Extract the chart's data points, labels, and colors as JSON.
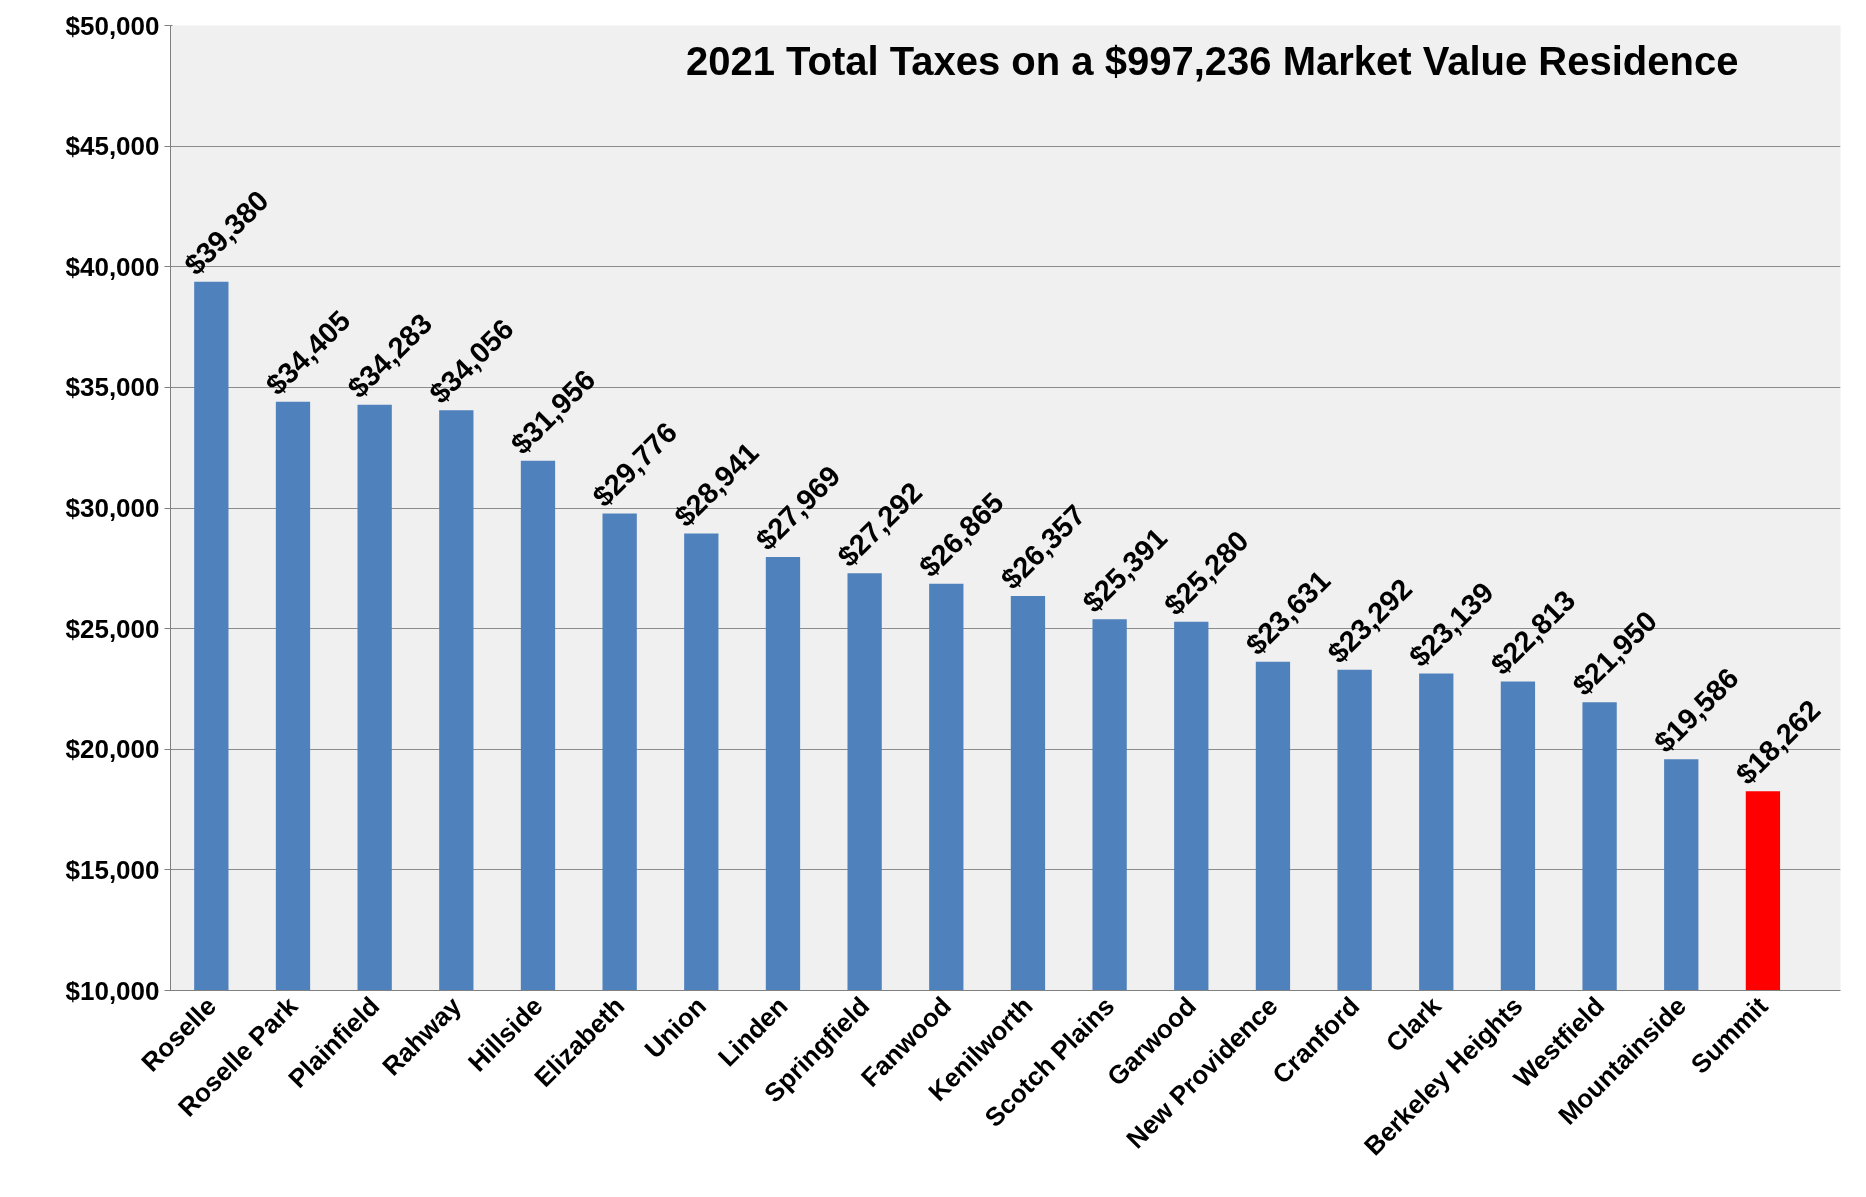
{
  "chart_data": {
    "type": "bar",
    "title": "2021 Total Taxes on a $997,236 Market Value Residence",
    "categories": [
      "Roselle",
      "Roselle Park",
      "Plainfield",
      "Rahway",
      "Hillside",
      "Elizabeth",
      "Union",
      "Linden",
      "Springfield",
      "Fanwood",
      "Kenilworth",
      "Scotch Plains",
      "Garwood",
      "New Providence",
      "Cranford",
      "Clark",
      "Berkeley Heights",
      "Westfield",
      "Mountainside",
      "Summit"
    ],
    "values": [
      39380,
      34405,
      34283,
      34056,
      31956,
      29776,
      28941,
      27969,
      27292,
      26865,
      26357,
      25391,
      25280,
      23631,
      23292,
      23139,
      22813,
      21950,
      19586,
      18262
    ],
    "value_labels": [
      "$39,380",
      "$34,405",
      "$34,283",
      "$34,056",
      "$31,956",
      "$29,776",
      "$28,941",
      "$27,969",
      "$27,292",
      "$26,865",
      "$26,357",
      "$25,391",
      "$25,280",
      "$23,631",
      "$23,292",
      "$23,139",
      "$22,813",
      "$21,950",
      "$19,586",
      "$18,262"
    ],
    "colors": [
      "#4f81bd",
      "#4f81bd",
      "#4f81bd",
      "#4f81bd",
      "#4f81bd",
      "#4f81bd",
      "#4f81bd",
      "#4f81bd",
      "#4f81bd",
      "#4f81bd",
      "#4f81bd",
      "#4f81bd",
      "#4f81bd",
      "#4f81bd",
      "#4f81bd",
      "#4f81bd",
      "#4f81bd",
      "#4f81bd",
      "#4f81bd",
      "#ff0000"
    ],
    "ylim": [
      10000,
      50000
    ],
    "yticks": [
      {
        "value": 10000,
        "label": "$10,000"
      },
      {
        "value": 15000,
        "label": "$15,000"
      },
      {
        "value": 20000,
        "label": "$20,000"
      },
      {
        "value": 25000,
        "label": "$25,000"
      },
      {
        "value": 30000,
        "label": "$30,000"
      },
      {
        "value": 35000,
        "label": "$35,000"
      },
      {
        "value": 40000,
        "label": "$40,000"
      },
      {
        "value": 45000,
        "label": "$45,000"
      },
      {
        "value": 50000,
        "label": "$50,000"
      }
    ],
    "grid": "y"
  }
}
